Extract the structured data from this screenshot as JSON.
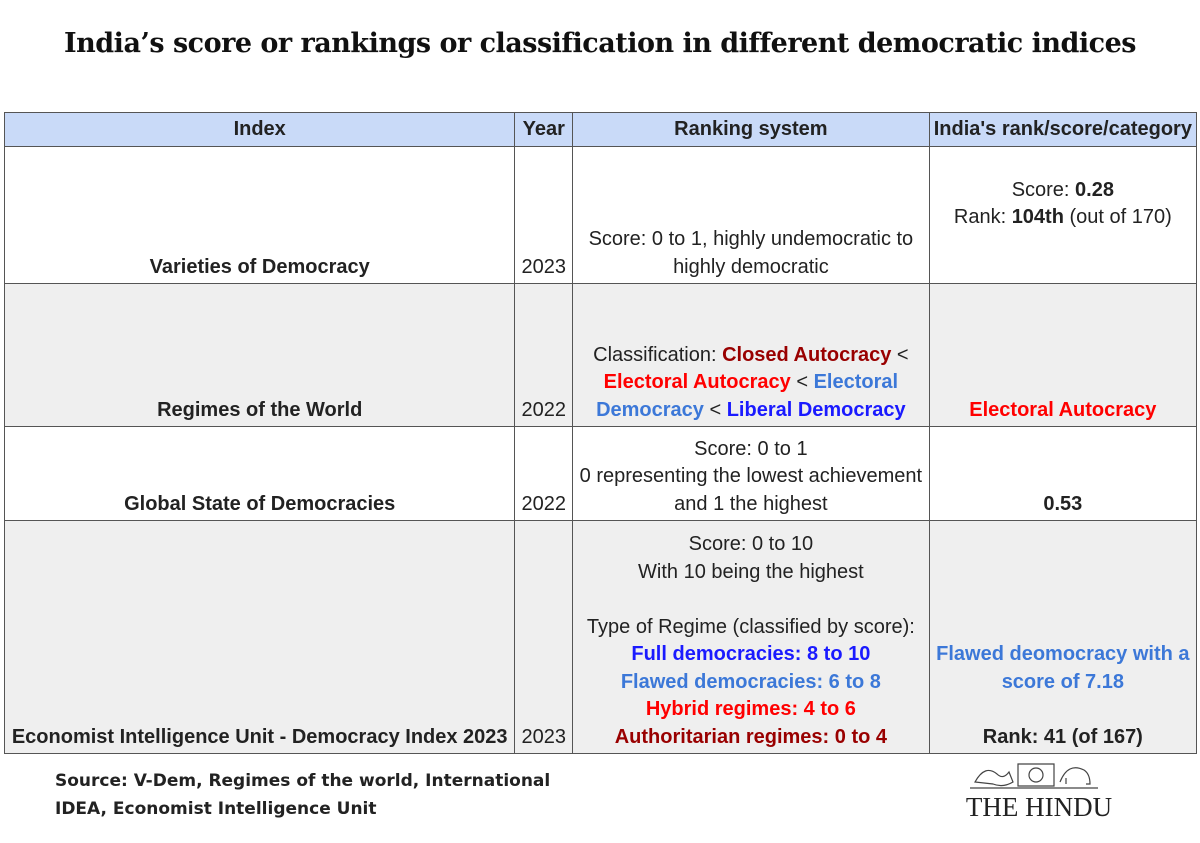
{
  "title": "India’s score or rankings or classification in different democratic indices",
  "table": {
    "header": [
      "Index",
      "Year",
      "Ranking system",
      "India's rank/score/category"
    ],
    "rows": [
      {
        "index": "Varieties of Democracy",
        "year": 2023,
        "ranking_system": [
          [
            [
              "Score: 0 to 1, highly undemocratic to"
            ],
            [
              "highly democratic"
            ]
          ]
        ],
        "india": [
          [
            [
              {
                "text": "Score: "
              },
              {
                "text": "0.28",
                "bold": true
              }
            ],
            [
              {
                "text": "Rank: "
              },
              {
                "text": "104th",
                "bold": true
              },
              {
                "text": " (out of 170)"
              }
            ]
          ]
        ]
      },
      {
        "index": "Regimes of the World",
        "year": 2022,
        "ranking_system": [
          [
            [
              {
                "text": "Classification: "
              },
              {
                "text": "Closed Autocracy",
                "bold": true,
                "color": "#990000"
              },
              {
                "text": " <"
              }
            ],
            [
              {
                "text": "Electoral Autocracy",
                "bold": true,
                "color": "#ff0000"
              },
              {
                "text": " < "
              },
              {
                "text": "Electoral",
                "bold": true,
                "color": "#3c78d8"
              }
            ],
            [
              {
                "text": "Democracy",
                "bold": true,
                "color": "#3c78d8"
              },
              {
                "text": " < "
              },
              {
                "text": "Liberal Democracy",
                "bold": true,
                "color": "#1a1aff"
              }
            ]
          ]
        ],
        "india": [
          [
            [
              {
                "text": "Electoral Autocracy",
                "bold": true,
                "color": "#ff0000"
              }
            ]
          ]
        ]
      },
      {
        "index": "Global State of Democracies",
        "year": 2022,
        "ranking_system": [
          [
            [
              "Score: 0 to 1"
            ],
            [
              "0 representing the lowest achievement"
            ],
            [
              "and 1 the highest"
            ]
          ]
        ],
        "india": [
          [
            [
              {
                "text": "0.53",
                "bold": true
              }
            ]
          ]
        ]
      },
      {
        "index": "Economist Intelligence Unit - Democracy Index 2023",
        "year": 2023,
        "ranking_system": [
          [
            [
              "Score: 0 to 10"
            ],
            [
              "With 10 being the highest"
            ]
          ],
          [
            [
              "Type of Regime (classified by score):"
            ],
            [
              {
                "text": "Full democracies: 8 to 10",
                "bold": true,
                "color": "#1a1aff"
              }
            ],
            [
              {
                "text": "Flawed democracies: 6 to 8",
                "bold": true,
                "color": "#3c78d8"
              }
            ],
            [
              {
                "text": "Hybrid regimes: 4 to 6",
                "bold": true,
                "color": "#ff0000"
              }
            ],
            [
              {
                "text": "Authoritarian regimes: 0 to 4",
                "bold": true,
                "color": "#990000"
              }
            ]
          ]
        ],
        "india": [
          [
            [
              {
                "text": "Flawed deomocracy with a",
                "bold": true,
                "color": "#3c78d8"
              }
            ],
            [
              {
                "text": "score of 7.18",
                "bold": true,
                "color": "#3c78d8"
              }
            ]
          ],
          [
            [
              {
                "text": "Rank: 41 (of 167)",
                "bold": true
              }
            ]
          ]
        ]
      }
    ]
  },
  "source": "Source: V-Dem, Regimes of the world,  International IDEA,  Economist Intelligence Unit",
  "logo": "THE HINDU"
}
